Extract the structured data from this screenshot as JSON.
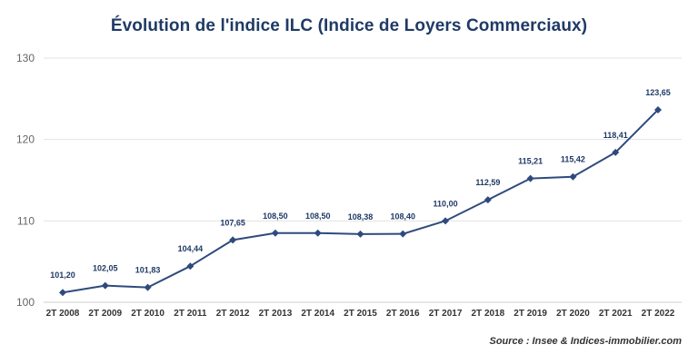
{
  "chart_data": {
    "type": "line",
    "title": "Évolution de l'indice ILC (Indice de Loyers Commerciaux)",
    "categories": [
      "2T 2008",
      "2T 2009",
      "2T 2010",
      "2T 2011",
      "2T 2012",
      "2T 2013",
      "2T 2014",
      "2T 2015",
      "2T 2016",
      "2T 2017",
      "2T 2018",
      "2T 2019",
      "2T 2020",
      "2T 2021",
      "2T 2022"
    ],
    "values": [
      101.2,
      102.05,
      101.83,
      104.44,
      107.65,
      108.5,
      108.5,
      108.38,
      108.4,
      110.0,
      112.59,
      115.21,
      115.42,
      118.41,
      123.65
    ],
    "data_labels": [
      "101,20",
      "102,05",
      "101,83",
      "104,44",
      "107,65",
      "108,50",
      "108,50",
      "108,38",
      "108,40",
      "110,00",
      "112,59",
      "115,21",
      "115,42",
      "118,41",
      "123,65"
    ],
    "y_ticks": [
      100,
      110,
      120,
      130
    ],
    "ylim": [
      100,
      130
    ],
    "grid": true,
    "line_color": "#2e4a7d"
  },
  "source": "Source : Insee & Indices-immobilier.com"
}
